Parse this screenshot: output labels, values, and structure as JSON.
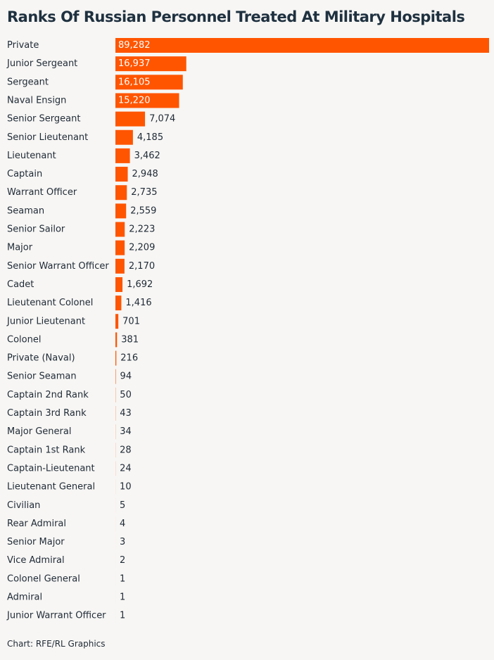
{
  "chart_data": {
    "type": "bar",
    "orientation": "horizontal",
    "title": "Ranks Of Russian Personnel Treated At Military Hospitals",
    "source": "Chart: RFE/RL Graphics",
    "bar_color": "#ff5500",
    "categories": [
      "Private",
      "Junior Sergeant",
      "Sergeant",
      "Naval Ensign",
      "Senior Sergeant",
      "Senior Lieutenant",
      "Lieutenant",
      "Captain",
      "Warrant Officer",
      "Seaman",
      "Senior Sailor",
      "Major",
      "Senior Warrant Officer",
      "Cadet",
      "Lieutenant Colonel",
      "Junior Lieutenant",
      "Colonel",
      "Private (Naval)",
      "Senior Seaman",
      "Captain 2nd Rank",
      "Captain 3rd Rank",
      "Major General",
      "Captain 1st Rank",
      "Captain-Lieutenant",
      "Lieutenant General",
      "Civilian",
      "Rear Admiral",
      "Senior Major",
      "Vice Admiral",
      "Colonel General",
      "Admiral",
      "Junior Warrant Officer"
    ],
    "values": [
      89282,
      16937,
      16105,
      15220,
      7074,
      4185,
      3462,
      2948,
      2735,
      2559,
      2223,
      2209,
      2170,
      1692,
      1416,
      701,
      381,
      216,
      94,
      50,
      43,
      34,
      28,
      24,
      10,
      5,
      4,
      3,
      2,
      1,
      1,
      1
    ],
    "value_labels": [
      "89,282",
      "16,937",
      "16,105",
      "15,220",
      "7,074",
      "4,185",
      "3,462",
      "2,948",
      "2,735",
      "2,559",
      "2,223",
      "2,209",
      "2,170",
      "1,692",
      "1,416",
      "701",
      "381",
      "216",
      "94",
      "50",
      "43",
      "34",
      "28",
      "24",
      "10",
      "5",
      "4",
      "3",
      "2",
      "1",
      "1",
      "1"
    ],
    "xlim": [
      0,
      89282
    ],
    "grid": false,
    "legend": "none"
  }
}
